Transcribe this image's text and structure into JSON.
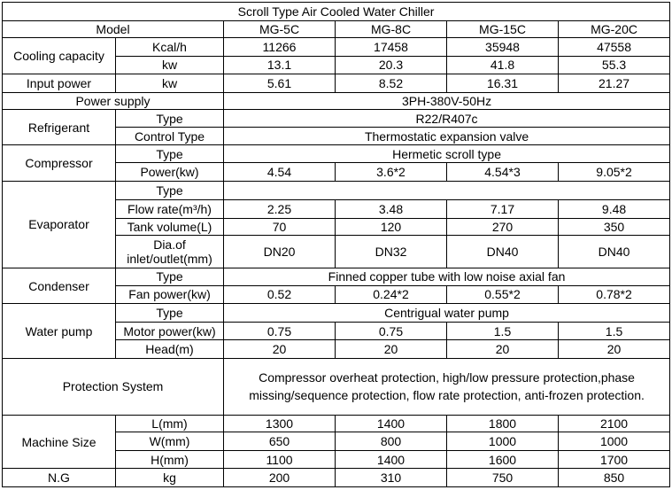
{
  "title": "Scroll Type Air Cooled Water Chiller",
  "model": {
    "label": "Model",
    "values": [
      "MG-5C",
      "MG-8C",
      "MG-15C",
      "MG-20C"
    ]
  },
  "cooling_capacity": {
    "label": "Cooling capacity",
    "kcal": {
      "unit": "Kcal/h",
      "values": [
        "11266",
        "17458",
        "35948",
        "47558"
      ]
    },
    "kw": {
      "unit": "kw",
      "values": [
        "13.1",
        "20.3",
        "41.8",
        "55.3"
      ]
    }
  },
  "input_power": {
    "label": "Input power",
    "unit": "kw",
    "values": [
      "5.61",
      "8.52",
      "16.31",
      "21.27"
    ]
  },
  "power_supply": {
    "label": "Power supply",
    "value": "3PH-380V-50Hz"
  },
  "refrigerant": {
    "label": "Refrigerant",
    "type_label": "Type",
    "type_value": "R22/R407c",
    "control_label": "Control Type",
    "control_value": "Thermostatic expansion valve"
  },
  "compressor": {
    "label": "Compressor",
    "type_label": "Type",
    "type_value": "Hermetic scroll type",
    "power_label": "Power(kw)",
    "power_values": [
      "4.54",
      "3.6*2",
      "4.54*3",
      "9.05*2"
    ]
  },
  "evaporator": {
    "label": "Evaporator",
    "type_label": "Type",
    "flow_label": "Flow rate(m³/h)",
    "flow_values": [
      "2.25",
      "3.48",
      "7.17",
      "9.48"
    ],
    "tank_label": "Tank volume(L)",
    "tank_values": [
      "70",
      "120",
      "270",
      "350"
    ],
    "dia_label": "Dia.of inlet/outlet(mm)",
    "dia_values": [
      "DN20",
      "DN32",
      "DN40",
      "DN40"
    ]
  },
  "condenser": {
    "label": "Condenser",
    "type_label": "Type",
    "type_value": "Finned copper tube with low noise axial fan",
    "fan_label": "Fan power(kw)",
    "fan_values": [
      "0.52",
      "0.24*2",
      "0.55*2",
      "0.78*2"
    ]
  },
  "water_pump": {
    "label": "Water pump",
    "type_label": "Type",
    "type_value": "Centrigual water pump",
    "motor_label": "Motor power(kw)",
    "motor_values": [
      "0.75",
      "0.75",
      "1.5",
      "1.5"
    ],
    "head_label": "Head(m)",
    "head_values": [
      "20",
      "20",
      "20",
      "20"
    ]
  },
  "protection": {
    "label": "Protection System",
    "value": "Compressor overheat protection, high/low pressure protection,phase missing/sequence protection, flow rate protection, anti-frozen protection."
  },
  "machine_size": {
    "label": "Machine Size",
    "l_label": "L(mm)",
    "l_values": [
      "1300",
      "1400",
      "1800",
      "2100"
    ],
    "w_label": "W(mm)",
    "w_values": [
      "650",
      "800",
      "1000",
      "1000"
    ],
    "h_label": "H(mm)",
    "h_values": [
      "1100",
      "1400",
      "1600",
      "1700"
    ]
  },
  "ng": {
    "label": "N.G",
    "unit": "kg",
    "values": [
      "200",
      "310",
      "750",
      "850"
    ]
  }
}
